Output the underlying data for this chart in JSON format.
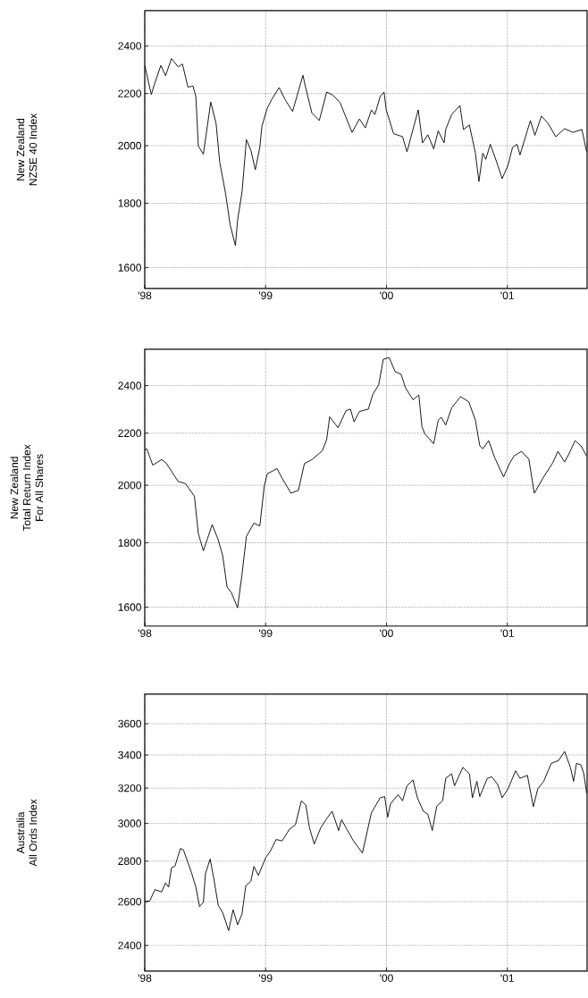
{
  "chart_data": [
    {
      "type": "line",
      "ylabel": "New Zealand\nNZSE 40 Index",
      "color": "#000000",
      "log": "y",
      "grid": true,
      "xlim": [
        1998,
        2001.66
      ],
      "ylim": [
        1540,
        2560
      ],
      "xticks": [
        {
          "value": 1998,
          "label": "'98"
        },
        {
          "value": 1999,
          "label": "'99"
        },
        {
          "value": 2000,
          "label": "'00"
        },
        {
          "value": 2001,
          "label": "'01"
        }
      ],
      "yticks": [
        1600,
        1800,
        2000,
        2200,
        2400
      ],
      "x": [
        1998.0,
        1998.054,
        1998.079,
        1998.133,
        1998.172,
        1998.221,
        1998.276,
        1998.312,
        1998.357,
        1998.399,
        1998.423,
        1998.443,
        1998.485,
        1998.546,
        1998.59,
        1998.62,
        1998.669,
        1998.706,
        1998.75,
        1998.768,
        1998.805,
        1998.841,
        1998.878,
        1998.915,
        1998.952,
        1998.969,
        1999.013,
        1999.05,
        1999.112,
        1999.161,
        1999.223,
        1999.309,
        1999.328,
        1999.383,
        1999.444,
        1999.505,
        1999.555,
        1999.616,
        1999.715,
        1999.776,
        1999.825,
        1999.875,
        1999.904,
        1999.948,
        1999.98,
        1999.998,
        2000.059,
        2000.133,
        2000.17,
        2000.219,
        2000.263,
        2000.298,
        2000.342,
        2000.391,
        2000.428,
        2000.477,
        2000.49,
        2000.539,
        2000.608,
        2000.637,
        2000.686,
        2000.736,
        2000.765,
        2000.797,
        2000.822,
        2000.859,
        2000.908,
        2000.957,
        2001.006,
        2001.043,
        2001.08,
        2001.105,
        2001.191,
        2001.228,
        2001.282,
        2001.338,
        2001.4,
        2001.474,
        2001.543,
        2001.617,
        2001.656
      ],
      "values": [
        2316,
        2196,
        2236,
        2316,
        2273,
        2345,
        2310,
        2322,
        2226,
        2230,
        2188,
        1999,
        1969,
        2166,
        2083,
        1941,
        1832,
        1731,
        1666,
        1745,
        1838,
        2022,
        1983,
        1914,
        1994,
        2072,
        2141,
        2176,
        2224,
        2176,
        2129,
        2275,
        2230,
        2123,
        2094,
        2206,
        2194,
        2164,
        2049,
        2100,
        2066,
        2135,
        2117,
        2188,
        2206,
        2135,
        2044,
        2033,
        1978,
        2060,
        2135,
        2010,
        2040,
        1989,
        2055,
        2010,
        2060,
        2117,
        2152,
        2060,
        2077,
        1973,
        1873,
        1973,
        1951,
        2005,
        1946,
        1883,
        1930,
        1994,
        2005,
        1967,
        2094,
        2038,
        2111,
        2083,
        2033,
        2063,
        2049,
        2060,
        1978
      ]
    },
    {
      "type": "line",
      "ylabel": "New Zealand\nTotal Return Index\nFor All Shares",
      "color": "#000000",
      "log": "y",
      "grid": true,
      "xlim": [
        1998,
        2001.66
      ],
      "ylim": [
        1545,
        2565
      ],
      "xticks": [
        {
          "value": 1998,
          "label": "'98"
        },
        {
          "value": 1999,
          "label": "'99"
        },
        {
          "value": 2000,
          "label": "'00"
        },
        {
          "value": 2001,
          "label": "'01"
        }
      ],
      "yticks": [
        1600,
        1800,
        2000,
        2200,
        2400
      ],
      "x": [
        1998.0,
        1998.017,
        1998.066,
        1998.14,
        1998.177,
        1998.276,
        1998.337,
        1998.411,
        1998.443,
        1998.485,
        1998.558,
        1998.607,
        1998.645,
        1998.681,
        1998.718,
        1998.768,
        1998.804,
        1998.841,
        1998.903,
        1998.952,
        1998.989,
        1999.013,
        1999.095,
        1999.137,
        1999.21,
        1999.272,
        1999.321,
        1999.383,
        1999.469,
        1999.505,
        1999.53,
        1999.599,
        1999.665,
        1999.702,
        1999.732,
        1999.776,
        1999.85,
        1999.887,
        1999.936,
        1999.973,
        2000.022,
        2000.071,
        2000.121,
        2000.157,
        2000.219,
        2000.268,
        2000.293,
        2000.317,
        2000.391,
        2000.428,
        2000.453,
        2000.49,
        2000.539,
        2000.613,
        2000.681,
        2000.736,
        2000.772,
        2000.797,
        2000.846,
        2000.895,
        2000.969,
        2001.018,
        2001.055,
        2001.117,
        2001.178,
        2001.223,
        2001.301,
        2001.375,
        2001.419,
        2001.474,
        2001.51,
        2001.56,
        2001.609,
        2001.656
      ],
      "values": [
        2133,
        2138,
        2075,
        2096,
        2083,
        2014,
        2006,
        1960,
        1831,
        1774,
        1861,
        1811,
        1758,
        1660,
        1642,
        1598,
        1697,
        1821,
        1866,
        1856,
        1998,
        2042,
        2062,
        2025,
        1971,
        1982,
        2081,
        2096,
        2130,
        2174,
        2267,
        2222,
        2292,
        2299,
        2246,
        2289,
        2299,
        2362,
        2404,
        2518,
        2527,
        2463,
        2450,
        2391,
        2339,
        2359,
        2227,
        2197,
        2158,
        2252,
        2265,
        2233,
        2304,
        2352,
        2330,
        2252,
        2150,
        2138,
        2170,
        2104,
        2031,
        2081,
        2110,
        2128,
        2098,
        1971,
        2031,
        2083,
        2128,
        2087,
        2118,
        2170,
        2150,
        2110
      ]
    },
    {
      "type": "line",
      "ylabel": "Australia\nAll Ords Index",
      "color": "#000000",
      "log": "y",
      "grid": true,
      "xlim": [
        1998,
        2001.66
      ],
      "ylim": [
        2290,
        3800
      ],
      "xticks": [
        {
          "value": 1998,
          "label": "'98"
        },
        {
          "value": 1999,
          "label": "'99"
        },
        {
          "value": 2000,
          "label": "'00"
        },
        {
          "value": 2001,
          "label": "'01"
        }
      ],
      "yticks": [
        2400,
        2600,
        2800,
        3000,
        3200,
        3400,
        3600
      ],
      "x": [
        1998.0,
        1998.042,
        1998.084,
        1998.14,
        1998.172,
        1998.197,
        1998.221,
        1998.251,
        1998.295,
        1998.32,
        1998.386,
        1998.423,
        1998.453,
        1998.485,
        1998.502,
        1998.541,
        1998.571,
        1998.608,
        1998.645,
        1998.694,
        1998.731,
        1998.768,
        1998.804,
        1998.836,
        1998.878,
        1998.903,
        1998.94,
        1999.001,
        1999.038,
        1999.087,
        1999.137,
        1999.198,
        1999.247,
        1999.296,
        1999.333,
        1999.363,
        1999.402,
        1999.456,
        1999.505,
        1999.55,
        1999.604,
        1999.629,
        1999.678,
        1999.727,
        1999.801,
        1999.875,
        1999.948,
        1999.985,
        2000.01,
        2000.034,
        2000.096,
        2000.133,
        2000.17,
        2000.219,
        2000.256,
        2000.305,
        2000.342,
        2000.379,
        2000.416,
        2000.465,
        2000.49,
        2000.539,
        2000.563,
        2000.632,
        2000.686,
        2000.711,
        2000.748,
        2000.772,
        2000.834,
        2000.871,
        2000.92,
        2000.957,
        2001.006,
        2001.068,
        2001.105,
        2001.166,
        2001.215,
        2001.252,
        2001.301,
        2001.363,
        2001.424,
        2001.474,
        2001.523,
        2001.548,
        2001.572,
        2001.609,
        2001.633,
        2001.656
      ],
      "values": [
        2600,
        2604,
        2658,
        2647,
        2691,
        2670,
        2766,
        2776,
        2866,
        2858,
        2743,
        2670,
        2577,
        2597,
        2736,
        2811,
        2713,
        2583,
        2548,
        2466,
        2562,
        2493,
        2541,
        2677,
        2699,
        2773,
        2728,
        2819,
        2850,
        2913,
        2906,
        2969,
        2993,
        3127,
        3102,
        2976,
        2889,
        2976,
        3026,
        3068,
        2961,
        3021,
        2961,
        2906,
        2842,
        3059,
        3144,
        3151,
        3034,
        3110,
        3162,
        3127,
        3214,
        3249,
        3144,
        3068,
        3051,
        2961,
        3096,
        3127,
        3258,
        3285,
        3214,
        3324,
        3285,
        3144,
        3240,
        3151,
        3258,
        3267,
        3222,
        3144,
        3196,
        3303,
        3258,
        3276,
        3093,
        3196,
        3240,
        3348,
        3366,
        3422,
        3321,
        3240,
        3348,
        3339,
        3285,
        3170
      ]
    }
  ]
}
